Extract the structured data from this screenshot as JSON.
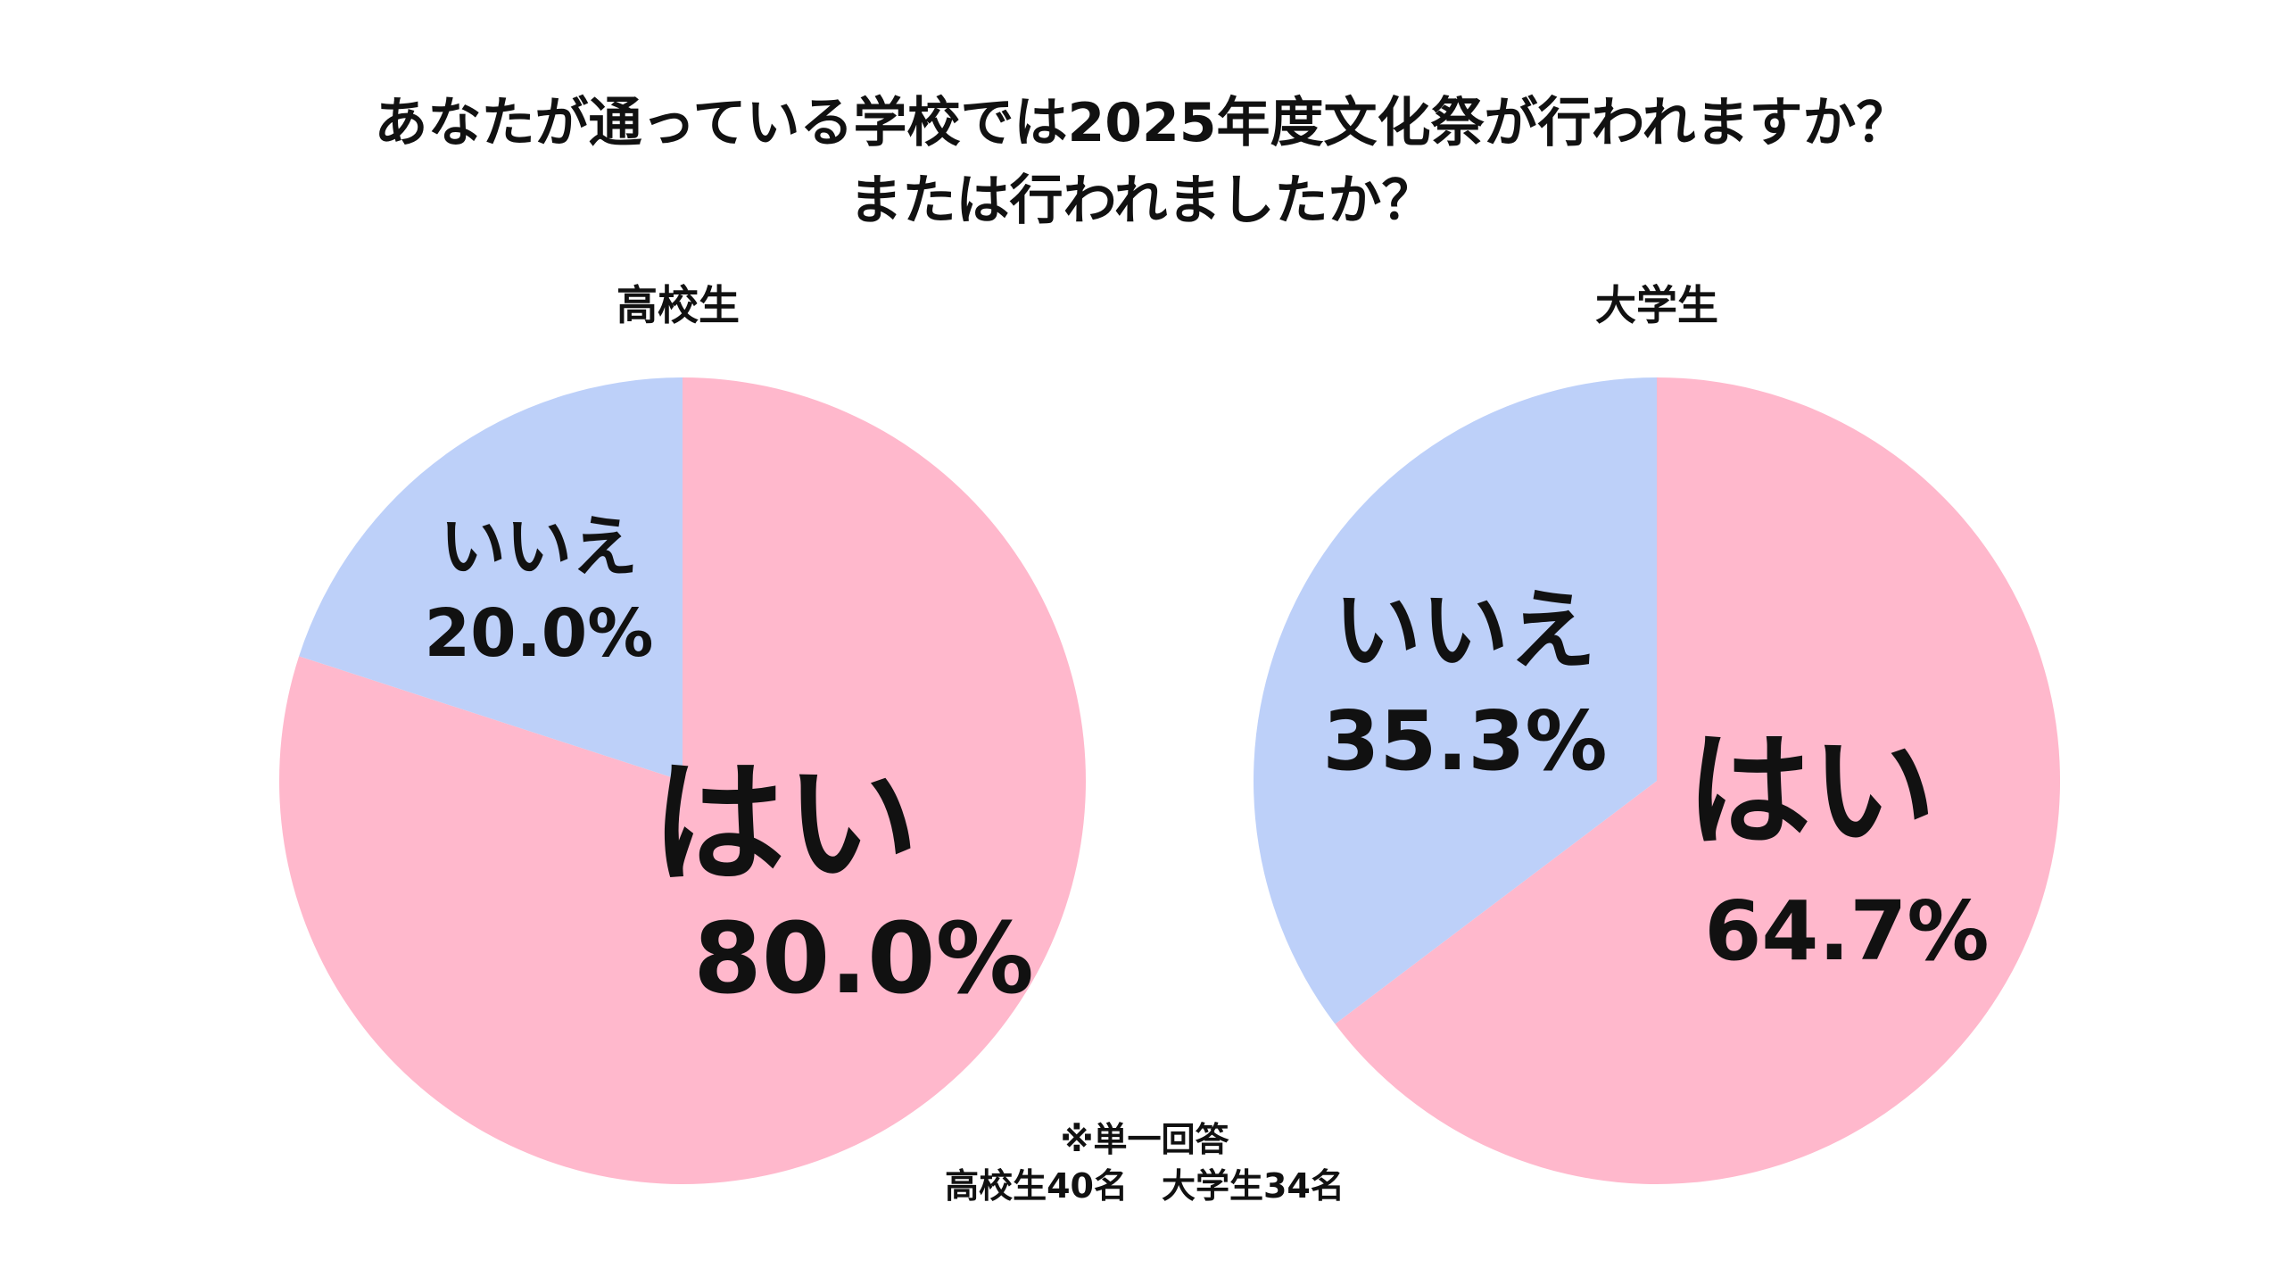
{
  "title_line1": "あなたが通っている学校では2025年度文化祭が行われますか？",
  "title_line2": "または行われましたか？",
  "note_line1": "※単一回答",
  "note_line2": "高校生40名　大学生34名",
  "colors": {
    "yes": "#FFB8CC",
    "no": "#BDD0F9",
    "text": "#111111"
  },
  "chart_data": [
    {
      "type": "pie",
      "title": "高校生",
      "labels": [
        "はい",
        "いいえ"
      ],
      "values": [
        80.0,
        20.0
      ],
      "value_labels": [
        "80.0%",
        "20.0%"
      ]
    },
    {
      "type": "pie",
      "title": "大学生",
      "labels": [
        "はい",
        "いいえ"
      ],
      "values": [
        64.7,
        35.3
      ],
      "value_labels": [
        "64.7%",
        "35.3%"
      ]
    }
  ]
}
